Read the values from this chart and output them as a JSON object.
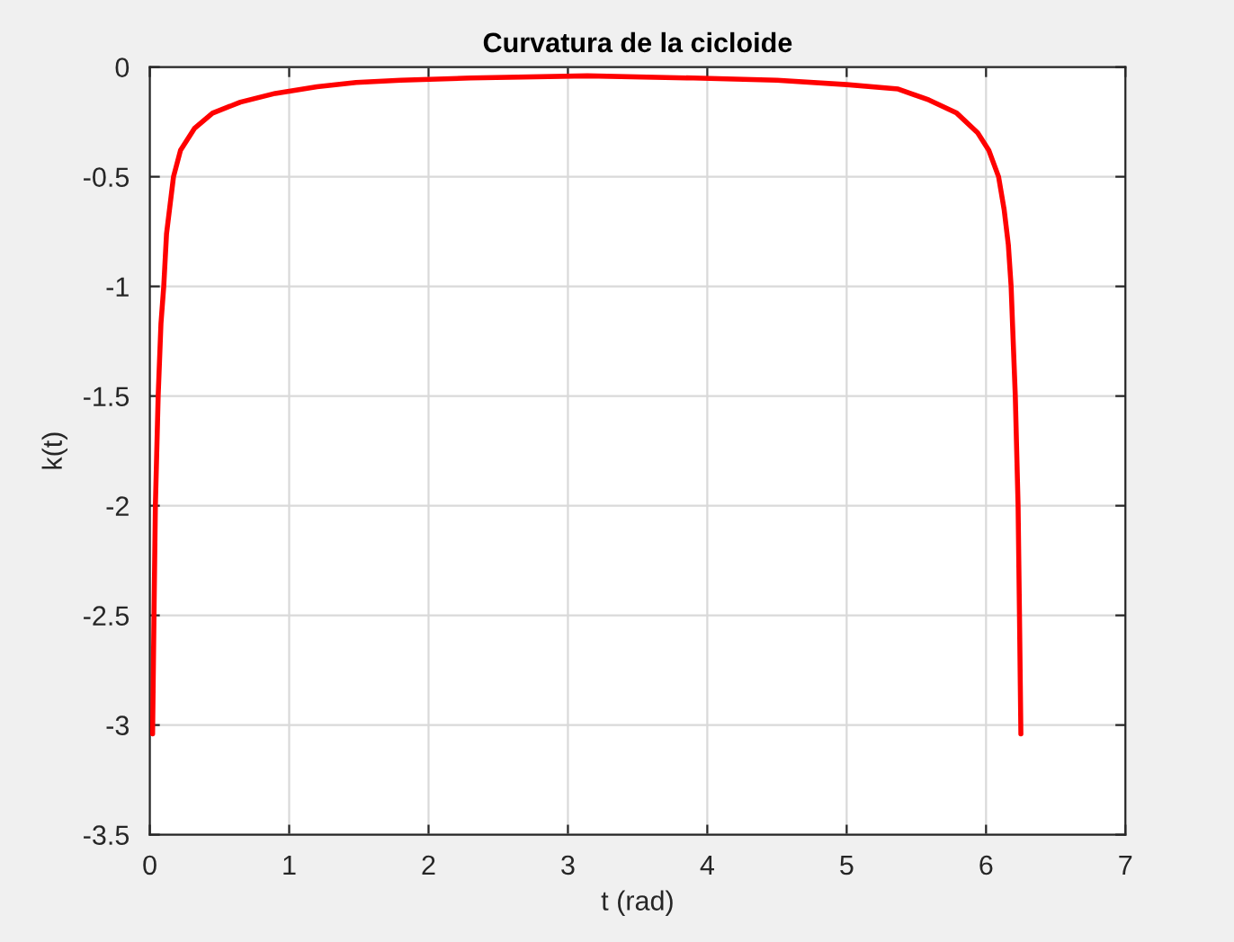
{
  "chart_data": {
    "type": "line",
    "title": "Curvatura de la cicloide",
    "xlabel": "t (rad)",
    "ylabel": "k(t)",
    "x": [
      0.02,
      0.03,
      0.04,
      0.06,
      0.08,
      0.1,
      0.12,
      0.17,
      0.22,
      0.32,
      0.45,
      0.65,
      0.9,
      1.2,
      1.48,
      1.8,
      2.3,
      3.14,
      3.9,
      4.5,
      5.0,
      5.37,
      5.59,
      5.79,
      5.94,
      6.02,
      6.09,
      6.13,
      6.16,
      6.18,
      6.19,
      6.21,
      6.23,
      6.24,
      6.25
    ],
    "series": [
      {
        "color": "#ff0000",
        "values": [
          -3.04,
          -2.5,
          -2.0,
          -1.5,
          -1.17,
          -1.0,
          -0.76,
          -0.5,
          -0.38,
          -0.28,
          -0.21,
          -0.16,
          -0.12,
          -0.09,
          -0.07,
          -0.06,
          -0.05,
          -0.04,
          -0.05,
          -0.06,
          -0.08,
          -0.1,
          -0.15,
          -0.21,
          -0.3,
          -0.38,
          -0.5,
          -0.65,
          -0.81,
          -1.0,
          -1.17,
          -1.5,
          -2.0,
          -2.5,
          -3.04
        ]
      }
    ],
    "xlim": [
      0,
      7
    ],
    "ylim": [
      -3.5,
      0
    ],
    "xticks": [
      0,
      1,
      2,
      3,
      4,
      5,
      6,
      7
    ],
    "yticks": [
      -3.5,
      -3,
      -2.5,
      -2,
      -1.5,
      -1,
      -0.5,
      0
    ],
    "grid": true,
    "line_style": "solid"
  }
}
